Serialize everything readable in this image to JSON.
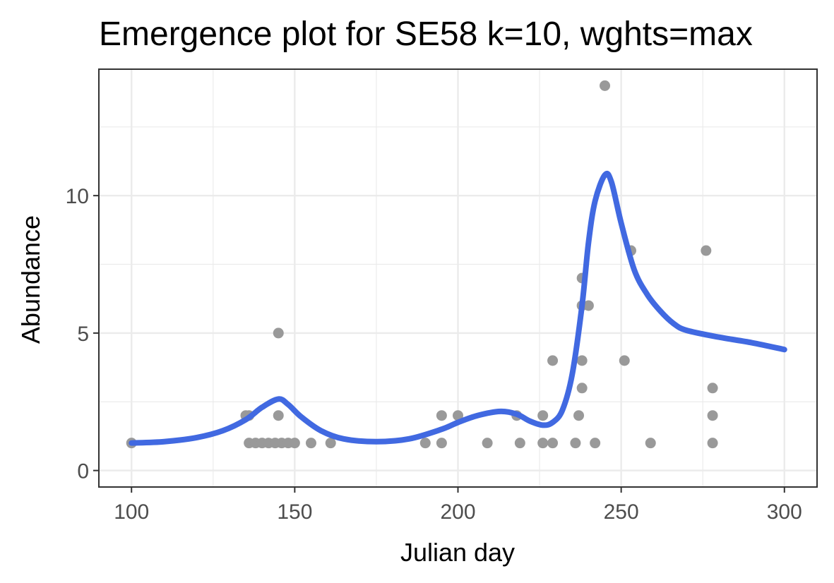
{
  "chart_data": {
    "type": "scatter",
    "title": "Emergence plot for SE58 k=10, wghts=max",
    "xlabel": "Julian day",
    "ylabel": "Abundance",
    "xlim": [
      90,
      310
    ],
    "ylim": [
      -0.6,
      14.6
    ],
    "x_ticks": [
      100,
      150,
      200,
      250,
      300
    ],
    "y_ticks": [
      0,
      5,
      10
    ],
    "grid": true,
    "legend": "none",
    "colors": {
      "points": "#999999",
      "line": "#4169e1",
      "panel_border": "#333333",
      "grid": "#ebebeb"
    },
    "series": [
      {
        "type": "scatter",
        "points": [
          [
            100,
            1
          ],
          [
            135,
            2
          ],
          [
            136,
            2
          ],
          [
            136,
            1
          ],
          [
            138,
            1
          ],
          [
            140,
            1
          ],
          [
            142,
            1
          ],
          [
            144,
            1
          ],
          [
            145,
            5
          ],
          [
            145,
            2
          ],
          [
            146,
            1
          ],
          [
            148,
            1
          ],
          [
            150,
            1
          ],
          [
            155,
            1
          ],
          [
            161,
            1
          ],
          [
            190,
            1
          ],
          [
            195,
            2
          ],
          [
            195,
            1
          ],
          [
            200,
            2
          ],
          [
            209,
            1
          ],
          [
            218,
            2
          ],
          [
            219,
            1
          ],
          [
            226,
            2
          ],
          [
            226,
            1
          ],
          [
            229,
            4
          ],
          [
            229,
            1
          ],
          [
            236,
            1
          ],
          [
            237,
            2
          ],
          [
            238,
            7
          ],
          [
            238,
            6
          ],
          [
            238,
            4
          ],
          [
            238,
            3
          ],
          [
            240,
            6
          ],
          [
            242,
            1
          ],
          [
            245,
            14
          ],
          [
            251,
            4
          ],
          [
            253,
            8
          ],
          [
            259,
            1
          ],
          [
            276,
            8
          ],
          [
            278,
            3
          ],
          [
            278,
            2
          ],
          [
            278,
            1
          ]
        ]
      },
      {
        "type": "line",
        "points": [
          [
            100,
            1.0
          ],
          [
            110,
            1.05
          ],
          [
            120,
            1.2
          ],
          [
            128,
            1.45
          ],
          [
            135,
            1.85
          ],
          [
            140,
            2.3
          ],
          [
            145,
            2.6
          ],
          [
            148,
            2.4
          ],
          [
            152,
            1.95
          ],
          [
            158,
            1.45
          ],
          [
            165,
            1.15
          ],
          [
            175,
            1.05
          ],
          [
            185,
            1.15
          ],
          [
            195,
            1.5
          ],
          [
            200,
            1.75
          ],
          [
            206,
            2.0
          ],
          [
            213,
            2.15
          ],
          [
            218,
            2.05
          ],
          [
            222,
            1.8
          ],
          [
            226,
            1.65
          ],
          [
            229,
            1.75
          ],
          [
            232,
            2.2
          ],
          [
            235,
            3.5
          ],
          [
            238,
            6.0
          ],
          [
            240,
            8.3
          ],
          [
            242,
            9.8
          ],
          [
            245,
            10.75
          ],
          [
            247,
            10.5
          ],
          [
            250,
            9.0
          ],
          [
            254,
            7.3
          ],
          [
            258,
            6.4
          ],
          [
            262,
            5.8
          ],
          [
            266,
            5.35
          ],
          [
            270,
            5.1
          ],
          [
            280,
            4.85
          ],
          [
            290,
            4.65
          ],
          [
            300,
            4.4
          ]
        ]
      }
    ]
  }
}
